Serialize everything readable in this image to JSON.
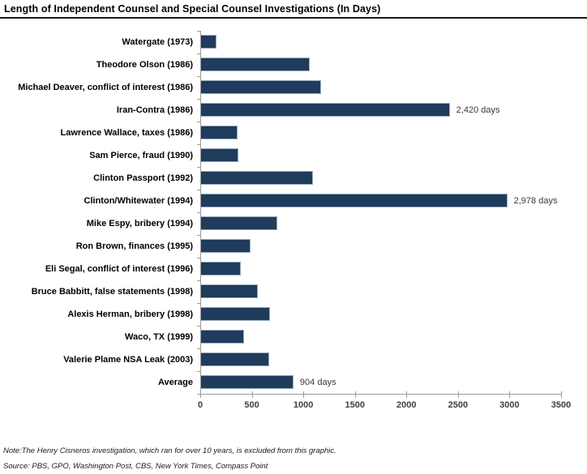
{
  "title": "Length of Independent Counsel and Special Counsel Investigations (In Days)",
  "footnotes": {
    "note": "Note:The Henry Cisneros investigation, which ran for over 10 years, is excluded from this graphic.",
    "source": "Source: PBS, GPO, Washington Post, CBS, New York Times, Compass Point"
  },
  "chart_data": {
    "type": "bar",
    "orientation": "horizontal",
    "title": "Length of Independent Counsel and Special Counsel Investigations (In Days)",
    "categories": [
      "Watergate (1973)",
      "Theodore Olson (1986)",
      "Michael Deaver, conflict of interest (1986)",
      "Iran-Contra (1986)",
      "Lawrence Wallace, taxes (1986)",
      "Sam Pierce, fraud (1990)",
      "Clinton Passport (1992)",
      "Clinton/Whitewater (1994)",
      "Mike Espy, bribery (1994)",
      "Ron Brown, finances (1995)",
      "Eli Segal, conflict of interest (1996)",
      "Bruce Babbitt, false statements (1998)",
      "Alexis Herman, bribery (1998)",
      "Waco, TX (1999)",
      "Valerie Plame NSA Leak (2003)",
      "Average"
    ],
    "values": [
      160,
      1060,
      1170,
      2420,
      365,
      370,
      1090,
      2978,
      750,
      490,
      390,
      560,
      680,
      425,
      665,
      904
    ],
    "annotations": [
      "",
      "",
      "",
      "2,420 days",
      "",
      "",
      "",
      "2,978 days",
      "",
      "",
      "",
      "",
      "",
      "",
      "",
      "904 days"
    ],
    "xlabel": "",
    "ylabel": "",
    "xlim": [
      0,
      3500
    ],
    "xticks": [
      0,
      500,
      1000,
      1500,
      2000,
      2500,
      3000,
      3500
    ],
    "grid": false,
    "legend": false,
    "colors": {
      "bar_fill": "#1f3c5c",
      "bar_border": "#94aabe",
      "axis_line": "#9a9a9a",
      "tick_label": "#404040"
    }
  }
}
